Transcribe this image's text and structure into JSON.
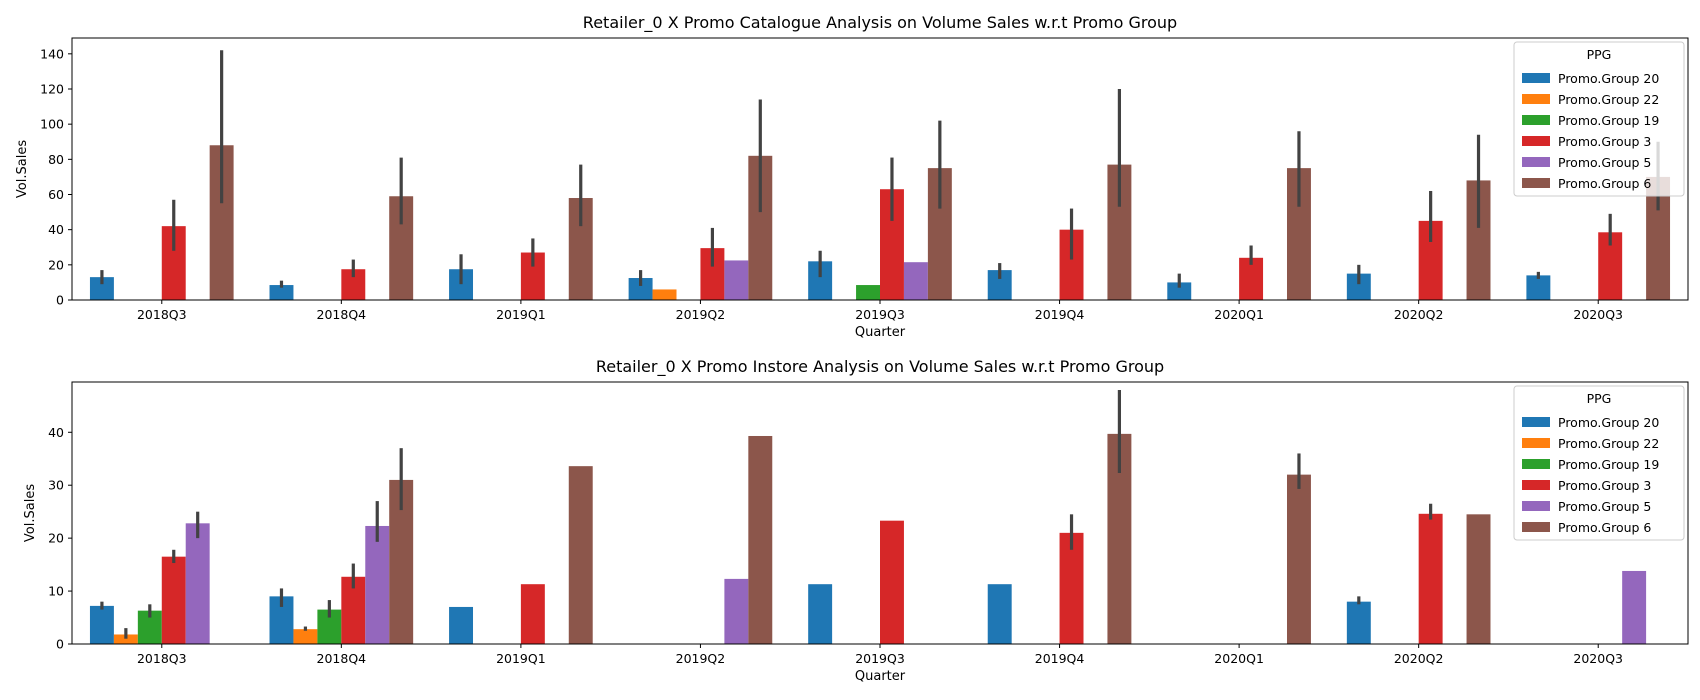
{
  "chart_data": [
    {
      "type": "bar",
      "title": "Retailer_0 X Promo Catalogue Analysis on Volume Sales w.r.t Promo Group",
      "xlabel": "Quarter",
      "ylabel": "Vol.Sales",
      "ylim": [
        0,
        149
      ],
      "yticks": [
        0,
        20,
        40,
        60,
        80,
        100,
        120,
        140
      ],
      "categories": [
        "2018Q3",
        "2018Q4",
        "2019Q1",
        "2019Q2",
        "2019Q3",
        "2019Q4",
        "2020Q1",
        "2020Q2",
        "2020Q3"
      ],
      "legend": {
        "title": "PPG",
        "position": "upper right"
      },
      "series": [
        {
          "name": "Promo.Group 20",
          "color": "#1f77b4",
          "values": [
            13,
            8.5,
            17.5,
            12.5,
            22,
            17,
            10,
            15,
            14
          ],
          "err_low": [
            9,
            7,
            9,
            8,
            13,
            12,
            7,
            9,
            12
          ],
          "err_high": [
            17,
            11,
            26,
            17,
            28,
            21,
            15,
            20,
            16
          ]
        },
        {
          "name": "Promo.Group 22",
          "color": "#ff7f0e",
          "values": [
            null,
            null,
            null,
            6,
            null,
            null,
            null,
            null,
            null
          ],
          "err_low": [
            null,
            null,
            null,
            null,
            null,
            null,
            null,
            null,
            null
          ],
          "err_high": [
            null,
            null,
            null,
            null,
            null,
            null,
            null,
            null,
            null
          ]
        },
        {
          "name": "Promo.Group 19",
          "color": "#2ca02c",
          "values": [
            null,
            null,
            null,
            null,
            8.5,
            null,
            null,
            null,
            null
          ],
          "err_low": [
            null,
            null,
            null,
            null,
            null,
            null,
            null,
            null,
            null
          ],
          "err_high": [
            null,
            null,
            null,
            null,
            null,
            null,
            null,
            null,
            null
          ]
        },
        {
          "name": "Promo.Group 3",
          "color": "#d62728",
          "values": [
            42,
            17.5,
            27,
            29.5,
            63,
            40,
            24,
            45,
            38.5
          ],
          "err_low": [
            28,
            13,
            19,
            19,
            45,
            23,
            20,
            33,
            31
          ],
          "err_high": [
            57,
            23,
            35,
            41,
            81,
            52,
            31,
            62,
            49
          ]
        },
        {
          "name": "Promo.Group 5",
          "color": "#9467bd",
          "values": [
            null,
            null,
            null,
            22.5,
            21.5,
            null,
            null,
            null,
            null
          ],
          "err_low": [
            null,
            null,
            null,
            null,
            null,
            null,
            null,
            null,
            null
          ],
          "err_high": [
            null,
            null,
            null,
            null,
            null,
            null,
            null,
            null,
            null
          ]
        },
        {
          "name": "Promo.Group 6",
          "color": "#8c564b",
          "values": [
            88,
            59,
            58,
            82,
            75,
            77,
            75,
            68,
            70
          ],
          "err_low": [
            55,
            43,
            42,
            50,
            52,
            53,
            53,
            41,
            51
          ],
          "err_high": [
            142,
            81,
            77,
            114,
            102,
            120,
            96,
            94,
            90
          ]
        }
      ]
    },
    {
      "type": "bar",
      "title": "Retailer_0 X Promo Instore Analysis on Volume Sales w.r.t Promo Group",
      "xlabel": "Quarter",
      "ylabel": "Vol.Sales",
      "ylim": [
        0,
        49.5
      ],
      "yticks": [
        0,
        10,
        20,
        30,
        40
      ],
      "categories": [
        "2018Q3",
        "2018Q4",
        "2019Q1",
        "2019Q2",
        "2019Q3",
        "2019Q4",
        "2020Q1",
        "2020Q2",
        "2020Q3"
      ],
      "legend": {
        "title": "PPG",
        "position": "upper right"
      },
      "series": [
        {
          "name": "Promo.Group 20",
          "color": "#1f77b4",
          "values": [
            7.2,
            9,
            7,
            null,
            11.3,
            11.3,
            null,
            8,
            null
          ],
          "err_low": [
            6.5,
            7,
            null,
            null,
            null,
            null,
            null,
            7.5,
            null
          ],
          "err_high": [
            8,
            10.5,
            null,
            null,
            null,
            null,
            null,
            9,
            null
          ]
        },
        {
          "name": "Promo.Group 22",
          "color": "#ff7f0e",
          "values": [
            1.8,
            2.8,
            null,
            null,
            null,
            null,
            null,
            null,
            null
          ],
          "err_low": [
            1,
            2.5,
            null,
            null,
            null,
            null,
            null,
            null,
            null
          ],
          "err_high": [
            3,
            3.3,
            null,
            null,
            null,
            null,
            null,
            null,
            null
          ]
        },
        {
          "name": "Promo.Group 19",
          "color": "#2ca02c",
          "values": [
            6.3,
            6.5,
            null,
            null,
            null,
            null,
            null,
            null,
            null
          ],
          "err_low": [
            5,
            5,
            null,
            null,
            null,
            null,
            null,
            null,
            null
          ],
          "err_high": [
            7.5,
            8.3,
            null,
            null,
            null,
            null,
            null,
            null,
            null
          ]
        },
        {
          "name": "Promo.Group 3",
          "color": "#d62728",
          "values": [
            16.5,
            12.7,
            11.3,
            null,
            23.3,
            21,
            null,
            24.6,
            null
          ],
          "err_low": [
            15.3,
            10.5,
            null,
            null,
            null,
            17.8,
            null,
            23.5,
            null
          ],
          "err_high": [
            17.8,
            15.2,
            null,
            null,
            null,
            24.5,
            null,
            26.5,
            null
          ]
        },
        {
          "name": "Promo.Group 5",
          "color": "#9467bd",
          "values": [
            22.8,
            22.3,
            null,
            12.3,
            null,
            null,
            null,
            null,
            13.8
          ],
          "err_low": [
            20,
            19.3,
            null,
            null,
            null,
            null,
            null,
            null,
            null
          ],
          "err_high": [
            25,
            27,
            null,
            null,
            null,
            null,
            null,
            null,
            null
          ]
        },
        {
          "name": "Promo.Group 6",
          "color": "#8c564b",
          "values": [
            null,
            31,
            33.6,
            39.3,
            null,
            39.7,
            32,
            24.5,
            null
          ],
          "err_low": [
            null,
            25.3,
            null,
            null,
            null,
            32.3,
            29.3,
            null,
            null
          ],
          "err_high": [
            null,
            37,
            null,
            null,
            null,
            48,
            36,
            null,
            null
          ]
        }
      ]
    }
  ]
}
